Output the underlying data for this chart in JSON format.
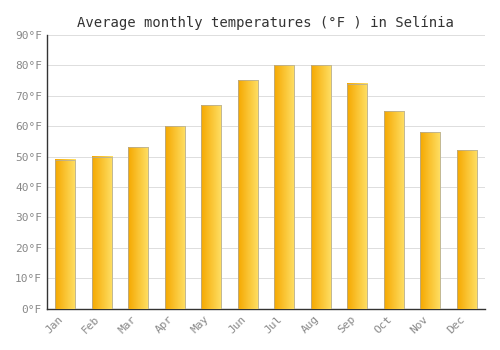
{
  "title": "Average monthly temperatures (°F ) in Selínia",
  "months": [
    "Jan",
    "Feb",
    "Mar",
    "Apr",
    "May",
    "Jun",
    "Jul",
    "Aug",
    "Sep",
    "Oct",
    "Nov",
    "Dec"
  ],
  "values": [
    49,
    50,
    53,
    60,
    67,
    75,
    80,
    80,
    74,
    65,
    58,
    52
  ],
  "bar_color_left": "#F5A800",
  "bar_color_right": "#FFD966",
  "bar_edge_color": "#AAAAAA",
  "background_color": "#FFFFFF",
  "grid_color": "#DDDDDD",
  "ylim": [
    0,
    90
  ],
  "yticks": [
    0,
    10,
    20,
    30,
    40,
    50,
    60,
    70,
    80,
    90
  ],
  "title_fontsize": 10,
  "tick_fontsize": 8,
  "font_family": "monospace"
}
